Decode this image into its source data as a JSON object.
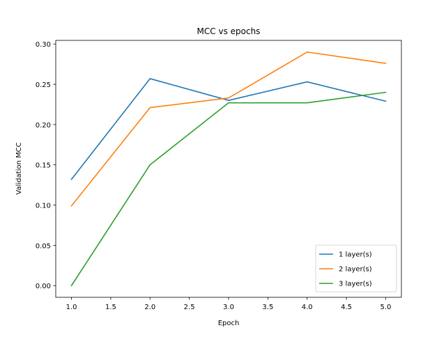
{
  "chart_data": {
    "type": "line",
    "title": "MCC vs epochs",
    "xlabel": "Epoch",
    "ylabel": "Validation MCC",
    "x": [
      1,
      2,
      3,
      4,
      5
    ],
    "xlim": [
      0.8,
      5.2
    ],
    "ylim": [
      -0.0145,
      0.3045
    ],
    "xticks": [
      1.0,
      1.5,
      2.0,
      2.5,
      3.0,
      3.5,
      4.0,
      4.5,
      5.0
    ],
    "xtick_labels": [
      "1.0",
      "1.5",
      "2.0",
      "2.5",
      "3.0",
      "3.5",
      "4.0",
      "4.5",
      "5.0"
    ],
    "yticks": [
      0.0,
      0.05,
      0.1,
      0.15,
      0.2,
      0.25,
      0.3
    ],
    "ytick_labels": [
      "0.00",
      "0.05",
      "0.10",
      "0.15",
      "0.20",
      "0.25",
      "0.30"
    ],
    "grid": false,
    "legend_position": "lower-right",
    "series": [
      {
        "name": "1 layer(s)",
        "color": "#1f77b4",
        "values": [
          0.132,
          0.257,
          0.23,
          0.253,
          0.229
        ]
      },
      {
        "name": "2 layer(s)",
        "color": "#ff7f0e",
        "values": [
          0.099,
          0.221,
          0.233,
          0.29,
          0.276
        ]
      },
      {
        "name": "3 layer(s)",
        "color": "#2ca02c",
        "values": [
          0.0,
          0.15,
          0.227,
          0.227,
          0.24
        ]
      }
    ]
  }
}
